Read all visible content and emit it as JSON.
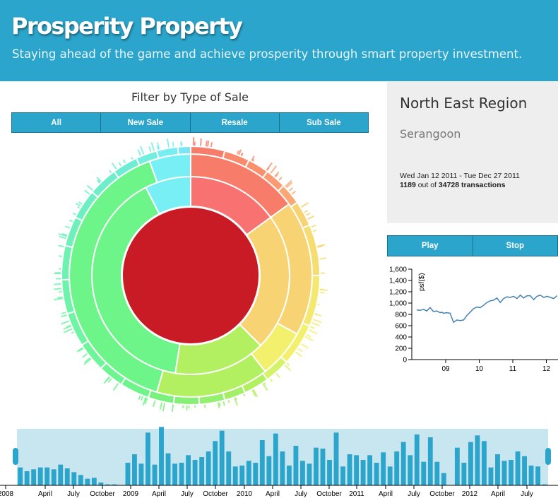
{
  "header": {
    "title": "Prosperity Property",
    "subtitle": "Staying ahead of the game and achieve prosperity through smart property investment."
  },
  "filter": {
    "title": "Filter by Type of Sale",
    "buttons": [
      "All",
      "New Sale",
      "Resale",
      "Sub Sale"
    ]
  },
  "info": {
    "region": "North East Region",
    "area": "Serangoon",
    "date_range": "Wed Jan 12 2011 - Tue Dec 27 2011",
    "shown_count": "1189",
    "out_of_text": " out of ",
    "total_count": "34728",
    "transactions_text": " transactions"
  },
  "controls": {
    "play_label": "Play",
    "stop_label": "Stop"
  },
  "colors": {
    "header_bg": "#2ba5cc",
    "button_bg": "#2ba5cc",
    "panel_bg": "#eeeeee",
    "bar": "#2ba5cc",
    "brush_bg": "#c8e6f0",
    "line": "#4682b4",
    "center": "#c91b26"
  },
  "chart_data": [
    {
      "type": "sunburst",
      "title": "",
      "levels": [
        {
          "ring": "center",
          "segments": [
            {
              "color": "#c91b26",
              "value": 1
            }
          ]
        },
        {
          "ring": "inner",
          "segments": [
            {
              "color": "#f87272",
              "value": 15
            },
            {
              "color": "#f7d374",
              "value": 22.5
            },
            {
              "color": "#b2f061",
              "value": 15
            },
            {
              "color": "#6ef58a",
              "value": 40
            },
            {
              "color": "#78eef5",
              "value": 7.5
            }
          ]
        },
        {
          "ring": "middle",
          "segments": [
            {
              "color": "#f87c6a",
              "value": 15
            },
            {
              "color": "#f7d374",
              "value": 18
            },
            {
              "color": "#f2f06c",
              "value": 6.5
            },
            {
              "color": "#b2f061",
              "value": 15
            },
            {
              "color": "#6ef58a",
              "value": 40
            },
            {
              "color": "#78eef5",
              "value": 5.5
            }
          ]
        },
        {
          "ring": "outer",
          "segments": [
            {
              "color": "#f87c6a",
              "value": 4
            },
            {
              "color": "#f98a6c",
              "value": 3
            },
            {
              "color": "#f9906e",
              "value": 2.5
            },
            {
              "color": "#fa9a70",
              "value": 2.5
            },
            {
              "color": "#f9a774",
              "value": 2.5
            },
            {
              "color": "#f7d374",
              "value": 3
            },
            {
              "color": "#f6dd72",
              "value": 6
            },
            {
              "color": "#f4e870",
              "value": 6
            },
            {
              "color": "#f2f06c",
              "value": 5
            },
            {
              "color": "#d6f26a",
              "value": 3
            },
            {
              "color": "#b2f061",
              "value": 3
            },
            {
              "color": "#a3ef68",
              "value": 2.5
            },
            {
              "color": "#94f06e",
              "value": 3
            },
            {
              "color": "#86f075",
              "value": 3
            },
            {
              "color": "#79f17c",
              "value": 3
            },
            {
              "color": "#6ef58a",
              "value": 3.5
            },
            {
              "color": "#6ef592",
              "value": 3
            },
            {
              "color": "#6ef59a",
              "value": 3.5
            },
            {
              "color": "#6ef4a2",
              "value": 4
            },
            {
              "color": "#6ef3aa",
              "value": 4
            },
            {
              "color": "#6ef2b2",
              "value": 4
            },
            {
              "color": "#6ef0ba",
              "value": 3.5
            },
            {
              "color": "#6eefc2",
              "value": 3.5
            },
            {
              "color": "#6eedcb",
              "value": 3.5
            },
            {
              "color": "#6eecd4",
              "value": 3
            },
            {
              "color": "#72edde",
              "value": 2.5
            },
            {
              "color": "#78eef0",
              "value": 2.5
            },
            {
              "color": "#7ae6f5",
              "value": 1.5
            }
          ]
        }
      ]
    },
    {
      "type": "line",
      "title": "",
      "xlabel": "",
      "ylabel": "psf($)",
      "x": [
        0,
        0.1,
        0.2,
        0.3,
        0.4,
        0.5,
        0.6,
        0.7,
        0.75,
        0.8,
        0.9,
        1,
        1.1,
        1.2,
        1.3,
        1.4,
        1.5,
        1.6,
        1.7,
        1.8,
        1.9,
        2,
        2.1,
        2.2,
        2.3,
        2.4,
        2.5,
        2.6,
        2.7,
        2.8,
        2.9,
        3,
        3.1,
        3.2,
        3.3,
        3.4,
        3.5,
        3.6,
        3.7,
        3.8,
        3.9,
        4,
        4.1,
        4.2
      ],
      "values": [
        880,
        870,
        890,
        860,
        920,
        850,
        860,
        830,
        840,
        820,
        830,
        820,
        660,
        700,
        690,
        700,
        780,
        840,
        900,
        930,
        920,
        960,
        1010,
        1040,
        1050,
        1090,
        1010,
        1080,
        1110,
        1100,
        1120,
        1080,
        1140,
        1090,
        1130,
        1130,
        1060,
        1120,
        1140,
        1100,
        1120,
        1100,
        1080,
        1130
      ],
      "xticks": [
        "09",
        "10",
        "11",
        "12"
      ],
      "yticks": [
        "0",
        "200",
        "400",
        "600",
        "800",
        "1,000",
        "1,200",
        "1,400",
        "1,600"
      ],
      "ylim": [
        0,
        1650
      ],
      "grid": false
    },
    {
      "type": "bar",
      "title": "",
      "values": [
        19,
        15,
        17,
        19,
        19,
        17,
        22,
        18,
        14,
        11,
        7,
        8,
        3,
        1,
        1,
        0,
        24,
        33,
        23,
        56,
        22,
        62,
        34,
        23,
        24,
        32,
        27,
        30,
        36,
        47,
        58,
        36,
        20,
        21,
        26,
        24,
        48,
        31,
        55,
        36,
        21,
        42,
        26,
        23,
        40,
        39,
        27,
        56,
        20,
        33,
        32,
        27,
        32,
        24,
        35,
        20,
        36,
        46,
        32,
        54,
        25,
        51,
        25,
        13,
        0,
        40,
        24,
        46,
        53,
        47,
        19,
        33,
        26,
        27,
        36,
        31,
        21,
        20,
        1
      ],
      "tick_labels": [
        "2008",
        "April",
        "July",
        "October",
        "2009",
        "April",
        "July",
        "October",
        "2010",
        "April",
        "July",
        "October",
        "2011",
        "April",
        "July",
        "October",
        "2012",
        "April",
        "July"
      ],
      "ylim": [
        0,
        60
      ],
      "grid": false
    }
  ]
}
